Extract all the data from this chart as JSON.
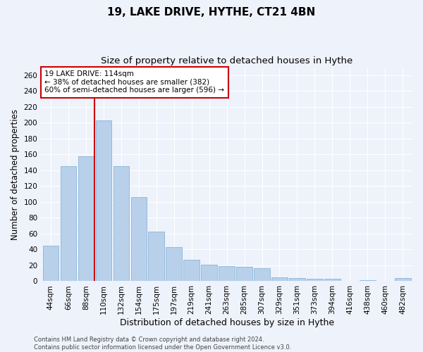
{
  "title": "19, LAKE DRIVE, HYTHE, CT21 4BN",
  "subtitle": "Size of property relative to detached houses in Hythe",
  "xlabel": "Distribution of detached houses by size in Hythe",
  "ylabel": "Number of detached properties",
  "categories": [
    "44sqm",
    "66sqm",
    "88sqm",
    "110sqm",
    "132sqm",
    "154sqm",
    "175sqm",
    "197sqm",
    "219sqm",
    "241sqm",
    "263sqm",
    "285sqm",
    "307sqm",
    "329sqm",
    "351sqm",
    "373sqm",
    "394sqm",
    "416sqm",
    "438sqm",
    "460sqm",
    "482sqm"
  ],
  "values": [
    45,
    145,
    158,
    203,
    145,
    106,
    63,
    43,
    27,
    21,
    19,
    18,
    16,
    5,
    4,
    3,
    3,
    0,
    1,
    0,
    4
  ],
  "bar_color": "#b8d0ea",
  "bar_edge_color": "#7aadd4",
  "background_color": "#eef2fb",
  "grid_color": "#ffffff",
  "property_label": "19 LAKE DRIVE: 114sqm",
  "annotation_line1": "← 38% of detached houses are smaller (382)",
  "annotation_line2": "60% of semi-detached houses are larger (596) →",
  "annotation_box_color": "#ffffff",
  "annotation_border_color": "#cc0000",
  "vline_color": "#cc0000",
  "vline_position": 3,
  "ylim": [
    0,
    270
  ],
  "yticks": [
    0,
    20,
    40,
    60,
    80,
    100,
    120,
    140,
    160,
    180,
    200,
    220,
    240,
    260
  ],
  "footer_line1": "Contains HM Land Registry data © Crown copyright and database right 2024.",
  "footer_line2": "Contains public sector information licensed under the Open Government Licence v3.0.",
  "title_fontsize": 11,
  "subtitle_fontsize": 9.5,
  "xlabel_fontsize": 9,
  "ylabel_fontsize": 8.5,
  "tick_fontsize": 7.5,
  "annotation_fontsize": 7.5,
  "footer_fontsize": 6
}
